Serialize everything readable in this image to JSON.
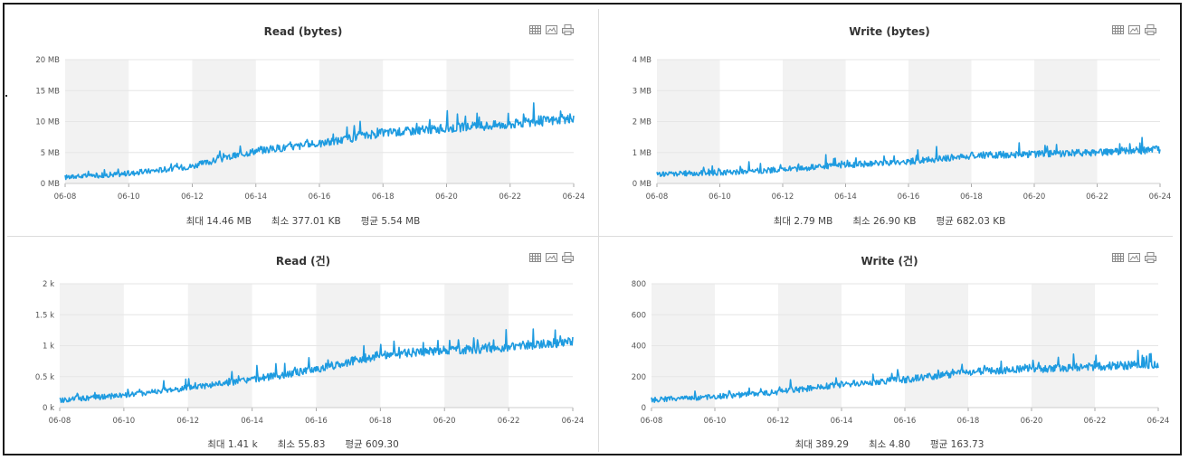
{
  "x_dates": [
    "06-08",
    "06-10",
    "06-12",
    "06-14",
    "06-16",
    "06-18",
    "06-20",
    "06-22",
    "06-24"
  ],
  "colors": {
    "line": "#1e9be0",
    "band": "#f2f2f2",
    "grid": "#e6e6e6"
  },
  "icons": [
    "table-icon",
    "image-icon",
    "print-icon"
  ],
  "chart_data": [
    {
      "type": "line",
      "title": "Read (bytes)",
      "ylabel": "",
      "yticks": [
        "0 MB",
        "5 MB",
        "10 MB",
        "15 MB",
        "20 MB"
      ],
      "ylim": [
        0,
        20
      ],
      "x": [
        "06-08",
        "06-10",
        "06-12",
        "06-14",
        "06-16",
        "06-18",
        "06-20",
        "06-22",
        "06-24"
      ],
      "series": [
        {
          "values": [
            1.0,
            1.6,
            2.8,
            5.3,
            6.4,
            8.2,
            8.9,
            9.6,
            10.5
          ]
        }
      ],
      "summary": {
        "max": "최대 14.46 MB",
        "min": "최소 377.01 KB",
        "avg": "평균 5.54 MB"
      }
    },
    {
      "type": "line",
      "title": "Write (bytes)",
      "ylabel": "",
      "yticks": [
        "0 MB",
        "1 MB",
        "2 MB",
        "3 MB",
        "4 MB"
      ],
      "ylim": [
        0,
        4
      ],
      "x": [
        "06-08",
        "06-10",
        "06-12",
        "06-14",
        "06-16",
        "06-18",
        "06-20",
        "06-22",
        "06-24"
      ],
      "series": [
        {
          "values": [
            0.3,
            0.35,
            0.45,
            0.6,
            0.7,
            0.9,
            0.95,
            1.0,
            1.1
          ]
        }
      ],
      "summary": {
        "max": "최대 2.79 MB",
        "min": "최소 26.90 KB",
        "avg": "평균 682.03 KB"
      }
    },
    {
      "type": "line",
      "title": "Read (건)",
      "ylabel": "",
      "yticks": [
        "0 k",
        "0.5 k",
        "1 k",
        "1.5 k",
        "2 k"
      ],
      "ylim": [
        0,
        2
      ],
      "x": [
        "06-08",
        "06-10",
        "06-12",
        "06-14",
        "06-16",
        "06-18",
        "06-20",
        "06-22",
        "06-24"
      ],
      "series": [
        {
          "values": [
            0.12,
            0.2,
            0.32,
            0.45,
            0.62,
            0.85,
            0.92,
            0.98,
            1.06
          ]
        }
      ],
      "summary": {
        "max": "최대 1.41 k",
        "min": "최소 55.83",
        "avg": "평균 609.30"
      }
    },
    {
      "type": "line",
      "title": "Write (건)",
      "ylabel": "",
      "yticks": [
        "0",
        "200",
        "400",
        "600",
        "800"
      ],
      "ylim": [
        0,
        800
      ],
      "x": [
        "06-08",
        "06-10",
        "06-12",
        "06-14",
        "06-16",
        "06-18",
        "06-20",
        "06-22",
        "06-24"
      ],
      "series": [
        {
          "values": [
            50,
            70,
            100,
            150,
            180,
            230,
            250,
            265,
            280
          ]
        }
      ],
      "summary": {
        "max": "최대 389.29",
        "min": "최소 4.80",
        "avg": "평균 163.73"
      }
    }
  ]
}
